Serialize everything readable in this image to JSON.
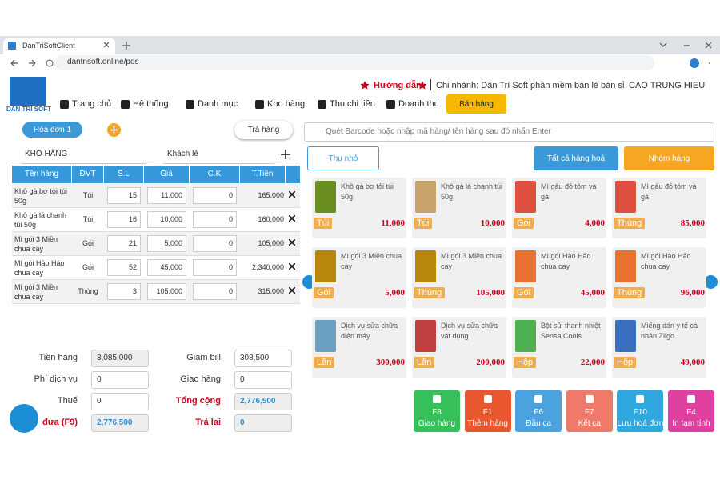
{
  "browser": {
    "tab": "DanTriSoftClient",
    "url": "dantrisoft.online/pos"
  },
  "header": {
    "logo": "DÂN TRÍ SOFT",
    "guide": "Hướng dẫn",
    "branch": "Chi nhánh: Dân Trí Soft phần mềm bán lẻ bán sỉ",
    "user": "CAO TRUNG HIEU"
  },
  "nav": [
    "Trang chủ",
    "Hệ thống",
    "Danh mục",
    "Kho hàng",
    "Thu chi tiền",
    "Doanh thu"
  ],
  "sell_button": "Bán hàng",
  "tabs": {
    "invoice": "Hóa đơn 1",
    "return": "Trả hàng"
  },
  "search_placeholder": "Quét Barcode hoặc nhập mã hàng/ tên hàng sau đó nhấn Enter",
  "warehouse": "KHO HÀNG",
  "customer": "Khách lẻ",
  "table": {
    "columns": [
      "Tên hàng",
      "ĐVT",
      "S.L",
      "Giá",
      "C.K",
      "T.Tiền"
    ],
    "rows": [
      [
        "Khô gà bơ tỏi túi 50g",
        "Túi",
        "15",
        "11,000",
        "0",
        "165,000"
      ],
      [
        "Khô gà lá chanh túi 50g",
        "Túi",
        "16",
        "10,000",
        "0",
        "160,000"
      ],
      [
        "Mì gói 3 Miền chua cay",
        "Gói",
        "21",
        "5,000",
        "0",
        "105,000"
      ],
      [
        "Mì gói Hảo Hảo chua cay",
        "Gói",
        "52",
        "45,000",
        "0",
        "2,340,000"
      ],
      [
        "Mì gói 3 Miền chua cay",
        "Thùng",
        "3",
        "105,000",
        "0",
        "315,000"
      ]
    ]
  },
  "summary": {
    "left": [
      {
        "label": "Tiền hàng",
        "value": "3,085,000"
      },
      {
        "label": "Phí dịch vụ",
        "value": "0"
      },
      {
        "label": "Thuế",
        "value": "0"
      },
      {
        "label": "đưa (F9)",
        "value": "2,776,500"
      }
    ],
    "right": [
      {
        "label": "Giảm bill",
        "value": "308,500"
      },
      {
        "label": "Giao hàng",
        "value": "0"
      },
      {
        "label": "Tổng cộng",
        "value": "2,776,500"
      },
      {
        "label": "Trả lại",
        "value": "0"
      }
    ]
  },
  "buttons": {
    "collapse": "Thu nhỏ",
    "all": "Tất cả hàng hoá",
    "group": "Nhóm hàng"
  },
  "products": [
    {
      "name": "Khô gà bơ tỏi túi 50g",
      "unit": "Túi",
      "price": "11,000"
    },
    {
      "name": "Khô gà lá chanh túi 50g",
      "unit": "Túi",
      "price": "10,000"
    },
    {
      "name": "Mì gấu đỏ tôm và gà",
      "unit": "Gói",
      "price": "4,000"
    },
    {
      "name": "Mì gấu đỏ tôm và gà",
      "unit": "Thùng",
      "price": "85,000"
    },
    {
      "name": "Mì gói 3 Miền chua cay",
      "unit": "Gói",
      "price": "5,000"
    },
    {
      "name": "Mì gói 3 Miền chua cay",
      "unit": "Thùng",
      "price": "105,000"
    },
    {
      "name": "Mì gói Hảo Hảo chua cay",
      "unit": "Gói",
      "price": "45,000"
    },
    {
      "name": "Mì gói Hảo Hảo chua cay",
      "unit": "Thùng",
      "price": "96,000"
    },
    {
      "name": "Dịch vụ sửa chữa điện máy",
      "unit": "Lần",
      "price": "300,000"
    },
    {
      "name": "Dịch vụ sửa chữa vật dụng",
      "unit": "Lần",
      "price": "200,000"
    },
    {
      "name": "Bột sủi thanh nhiệt Sensa Cools",
      "unit": "Hộp",
      "price": "22,000"
    },
    {
      "name": "Miếng dán y tế cá nhân Zilgo",
      "unit": "Hộp",
      "price": "49,000"
    }
  ],
  "actions": [
    {
      "key": "F8",
      "label": "Giao hàng"
    },
    {
      "key": "F1",
      "label": "Thêm hàng"
    },
    {
      "key": "F6",
      "label": "Đầu ca"
    },
    {
      "key": "F7",
      "label": "Kết ca"
    },
    {
      "key": "F10",
      "label": "Lưu hoá đơn"
    },
    {
      "key": "F4",
      "label": "In tạm tính"
    }
  ]
}
